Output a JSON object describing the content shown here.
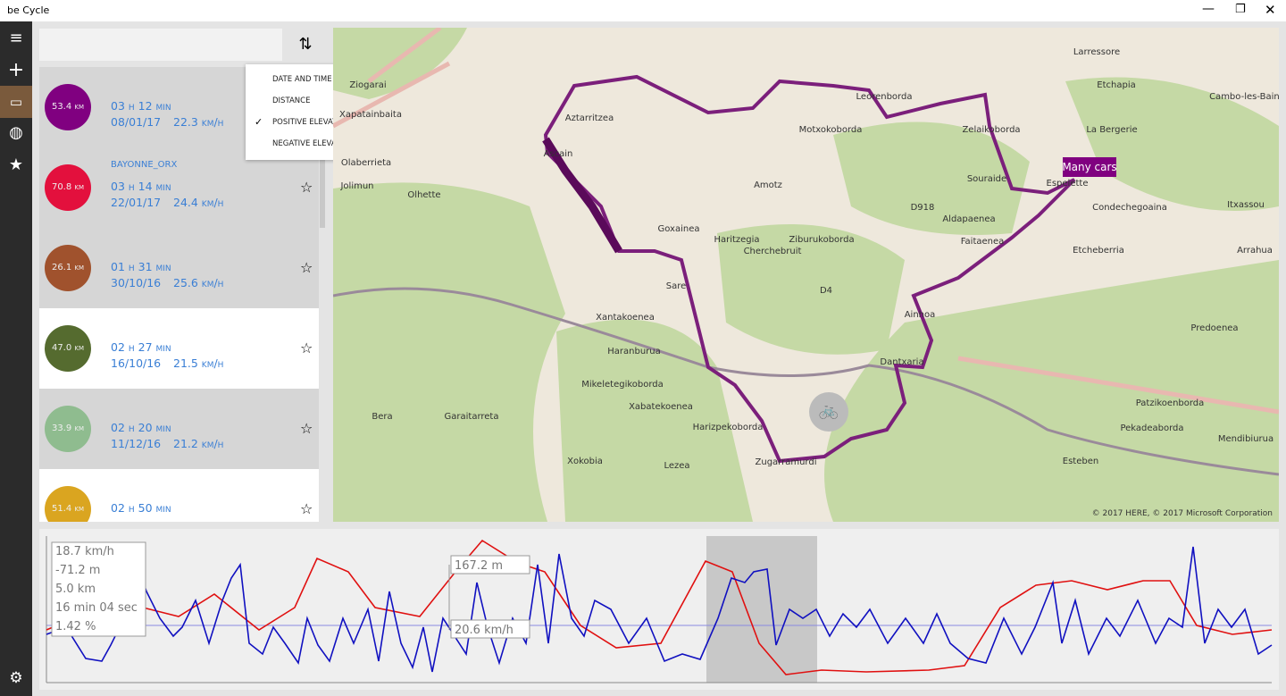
{
  "window": {
    "title": "be Cycle"
  },
  "sort_menu": {
    "items": [
      "DATE AND TIME",
      "DISTANCE",
      "POSITIVE ELEVATION",
      "NEGATIVE ELEVATION"
    ],
    "checked": 2
  },
  "rides": [
    {
      "distance": "53.4 km",
      "duration": "03 h 12 min",
      "date": "08/01/17",
      "speed": "22.3 km/h",
      "color": "#800080",
      "selected": true
    },
    {
      "distance": "70.8 km",
      "name": "BAYONNE_ORX",
      "duration": "03 h 14 min",
      "date": "22/01/17",
      "speed": "24.4 km/h",
      "color": "#e3103d",
      "selected": true
    },
    {
      "distance": "26.1 km",
      "duration": "01 h 31 min",
      "date": "30/10/16",
      "speed": "25.6 km/h",
      "color": "#a0522d",
      "selected": true
    },
    {
      "distance": "47.0 km",
      "duration": "02 h 27 min",
      "date": "16/10/16",
      "speed": "21.5 km/h",
      "color": "#556b2f",
      "selected": false
    },
    {
      "distance": "33.9 km",
      "duration": "02 h 20 min",
      "date": "11/12/16",
      "speed": "21.2 km/h",
      "color": "#8fbc8f",
      "selected": true
    },
    {
      "distance": "51.4 km",
      "duration": "02 h 50 min",
      "color": "#daa520",
      "selected": false
    }
  ],
  "map": {
    "annotation": "Many cars",
    "copyright": "© 2017 HERE, © 2017 Microsoft Corporation",
    "labels": [
      "Olhette",
      "Amotz",
      "Cherchebruit",
      "Sare",
      "Xantakoenea",
      "Haranburua",
      "Mikeletegikoborda",
      "Bera",
      "Garaitarreta",
      "Lezea",
      "Zugarramurdi",
      "Dantxaria",
      "Ainhoa",
      "Souraide",
      "Espelette",
      "Itxassou",
      "Larressore",
      "Cambo-les-Bains",
      "La Bergerie",
      "Zelaikoborda",
      "Leorenborda",
      "Motxokoborda",
      "Aldapaenea",
      "Faitaenea",
      "Ziburukoborda",
      "Arrahua",
      "Ascain",
      "Aztarritzea",
      "Etchapia",
      "Xapatainbaita",
      "Ziogarai",
      "Jolimun",
      "Olaberrieta",
      "Goxainea",
      "Haritzegia",
      "Xabatekoenea",
      "Harizpekoborda",
      "Xokobia",
      "Mendibiurua",
      "Pekadeaborda",
      "Patzikoenborda",
      "Esteben",
      "Predoenea",
      "Condechegoaina",
      "Etcheberria",
      "D918",
      "D4"
    ]
  },
  "profile": {
    "tooltip": [
      "18.7 km/h",
      "-71.2 m",
      "5.0 km",
      "16 min 04 sec",
      "1.42 %"
    ],
    "elevation_marker": "167.2 m",
    "speed_marker": "20.6 km/h"
  }
}
